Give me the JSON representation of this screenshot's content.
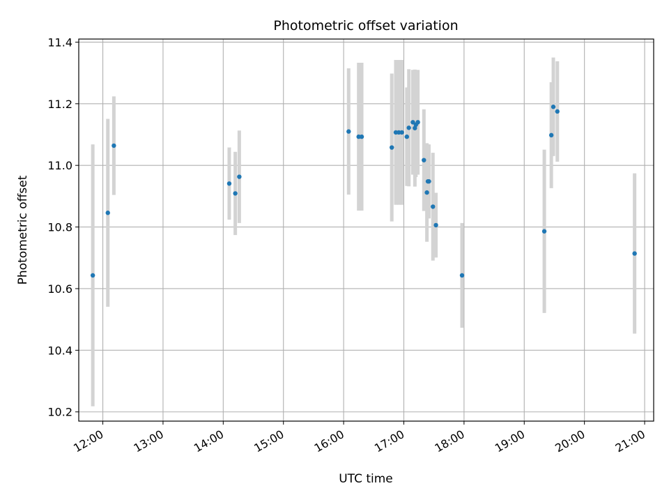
{
  "chart_data": {
    "type": "scatter",
    "title": "Photometric offset variation",
    "xlabel": "UTC time",
    "ylabel": "Photometric offset",
    "x_tick_labels": [
      "12:00",
      "13:00",
      "14:00",
      "15:00",
      "16:00",
      "17:00",
      "18:00",
      "19:00",
      "20:00",
      "21:00"
    ],
    "x_tick_hours": [
      12,
      13,
      14,
      15,
      16,
      17,
      18,
      19,
      20,
      21
    ],
    "xlim_hours": [
      11.6,
      21.15
    ],
    "ylim": [
      10.17,
      11.41
    ],
    "y_ticks": [
      10.2,
      10.4,
      10.6,
      10.8,
      11.0,
      11.2,
      11.4
    ],
    "y_tick_labels": [
      "10.2",
      "10.4",
      "10.6",
      "10.8",
      "11.0",
      "11.2",
      "11.4"
    ],
    "grid": true,
    "marker_color": "#1f77b4",
    "errorbar_color": "#d3d3d3",
    "points": [
      {
        "t": "11:50",
        "y": 10.643,
        "err": 0.425
      },
      {
        "t": "12:05",
        "y": 10.846,
        "err": 0.305
      },
      {
        "t": "12:11",
        "y": 11.064,
        "err": 0.16
      },
      {
        "t": "14:06",
        "y": 10.941,
        "err": 0.117
      },
      {
        "t": "14:12",
        "y": 10.909,
        "err": 0.135
      },
      {
        "t": "14:16",
        "y": 10.963,
        "err": 0.15
      },
      {
        "t": "16:05",
        "y": 11.11,
        "err": 0.205
      },
      {
        "t": "16:15",
        "y": 11.093,
        "err": 0.24
      },
      {
        "t": "16:18",
        "y": 11.093,
        "err": 0.24
      },
      {
        "t": "16:48",
        "y": 11.058,
        "err": 0.24
      },
      {
        "t": "16:52",
        "y": 11.107,
        "err": 0.235
      },
      {
        "t": "16:55",
        "y": 11.107,
        "err": 0.235
      },
      {
        "t": "16:58",
        "y": 11.107,
        "err": 0.235
      },
      {
        "t": "17:03",
        "y": 11.093,
        "err": 0.16
      },
      {
        "t": "17:05",
        "y": 11.122,
        "err": 0.19
      },
      {
        "t": "17:09",
        "y": 11.14,
        "err": 0.17
      },
      {
        "t": "17:11",
        "y": 11.121,
        "err": 0.19
      },
      {
        "t": "17:12",
        "y": 11.132,
        "err": 0.17
      },
      {
        "t": "17:14",
        "y": 11.14,
        "err": 0.17
      },
      {
        "t": "17:20",
        "y": 11.017,
        "err": 0.165
      },
      {
        "t": "17:23",
        "y": 10.912,
        "err": 0.16
      },
      {
        "t": "17:24",
        "y": 10.948,
        "err": 0.12
      },
      {
        "t": "17:25",
        "y": 10.948,
        "err": 0.12
      },
      {
        "t": "17:29",
        "y": 10.866,
        "err": 0.175
      },
      {
        "t": "17:32",
        "y": 10.806,
        "err": 0.105
      },
      {
        "t": "17:58",
        "y": 10.643,
        "err": 0.17
      },
      {
        "t": "19:20",
        "y": 10.786,
        "err": 0.265
      },
      {
        "t": "19:27",
        "y": 11.098,
        "err": 0.172
      },
      {
        "t": "19:29",
        "y": 11.19,
        "err": 0.16
      },
      {
        "t": "19:33",
        "y": 11.175,
        "err": 0.163
      },
      {
        "t": "20:50",
        "y": 10.714,
        "err": 0.26
      }
    ]
  }
}
